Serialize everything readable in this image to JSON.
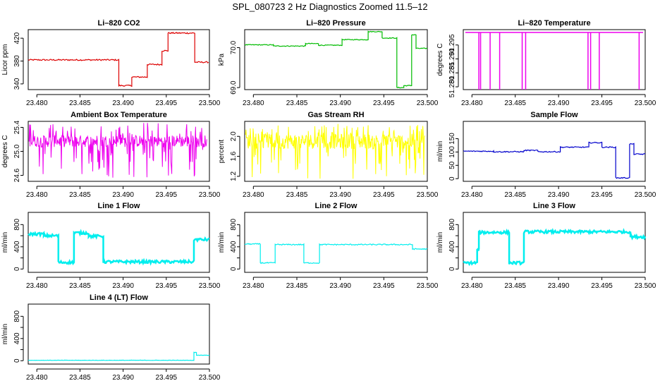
{
  "page_title": "SPL_080723  2 Hz Diagnostics Zoomed 11.5–12",
  "colors": {
    "red": "#dd0000",
    "green": "#00bb00",
    "magenta": "#ee00ee",
    "yellow": "#ffff00",
    "blue": "#0000cc",
    "cyan": "#00eeee"
  },
  "chart_data": [
    {
      "id": "co2",
      "type": "line",
      "title": "Li–820 CO2",
      "ylabel": "Licor ppm",
      "xlabel": "",
      "color": "red",
      "xlim": [
        23.479,
        23.5
      ],
      "ylim": [
        330,
        435
      ],
      "xticks": [
        23.48,
        23.485,
        23.49,
        23.495,
        23.5
      ],
      "xtick_labels": [
        "23.480",
        "23.485",
        "23.490",
        "23.495",
        "23.500"
      ],
      "yticks": [
        340,
        380,
        420
      ],
      "ytick_labels": [
        "340",
        "380",
        "420"
      ],
      "noise": 1.2,
      "segments": [
        {
          "x": [
            23.479,
            23.4895
          ],
          "y": 382
        },
        {
          "x": [
            23.4895,
            23.491
          ],
          "y": 337
        },
        {
          "x": [
            23.491,
            23.4928
          ],
          "y": 352
        },
        {
          "x": [
            23.4928,
            23.4945
          ],
          "y": 374
        },
        {
          "x": [
            23.4945,
            23.4952
          ],
          "y": 398
        },
        {
          "x": [
            23.4952,
            23.4983
          ],
          "y": 429
        },
        {
          "x": [
            23.4983,
            23.4999
          ],
          "y": 378
        }
      ]
    },
    {
      "id": "pressure",
      "type": "line",
      "title": "Li–820 Pressure",
      "ylabel": "kPa",
      "xlabel": "",
      "color": "green",
      "xlim": [
        23.479,
        23.5
      ],
      "ylim": [
        68.95,
        70.45
      ],
      "xticks": [
        23.48,
        23.485,
        23.49,
        23.495,
        23.5
      ],
      "xtick_labels": [
        "23.480",
        "23.485",
        "23.490",
        "23.495",
        "23.500"
      ],
      "yticks": [
        69.0,
        70.0
      ],
      "ytick_labels": [
        "69.0",
        "70.0"
      ],
      "noise": 0.01,
      "segments": [
        {
          "x": [
            23.479,
            23.4823
          ],
          "y": 70.07
        },
        {
          "x": [
            23.4823,
            23.486
          ],
          "y": 70.04
        },
        {
          "x": [
            23.486,
            23.4875
          ],
          "y": 70.1
        },
        {
          "x": [
            23.4875,
            23.4902
          ],
          "y": 70.06
        },
        {
          "x": [
            23.4902,
            23.4932
          ],
          "y": 70.2
        },
        {
          "x": [
            23.4932,
            23.4948
          ],
          "y": 70.4
        },
        {
          "x": [
            23.4948,
            23.4965
          ],
          "y": 70.24
        },
        {
          "x": [
            23.4965,
            23.4973
          ],
          "y": 69.0
        },
        {
          "x": [
            23.4973,
            23.4982
          ],
          "y": 69.05
        },
        {
          "x": [
            23.4982,
            23.4987
          ],
          "y": 70.32
        },
        {
          "x": [
            23.4987,
            23.5
          ],
          "y": 69.98
        }
      ]
    },
    {
      "id": "temperature",
      "type": "line",
      "title": "Li–820 Temperature",
      "ylabel": "degrees C",
      "xlabel": "",
      "color": "magenta",
      "xlim": [
        23.479,
        23.5
      ],
      "ylim": [
        51.279,
        51.3005
      ],
      "xticks": [
        23.48,
        23.485,
        23.49,
        23.495,
        23.5
      ],
      "xtick_labels": [
        "23.480",
        "23.485",
        "23.490",
        "23.495",
        "23.500"
      ],
      "yticks": [
        51.28,
        51.285,
        51.29,
        51.295
      ],
      "ytick_labels": [
        "51.280",
        "51.285",
        "51.290",
        "51.295"
      ],
      "baseline": 51.2995,
      "spikes": [
        23.4808,
        23.481,
        23.4821,
        23.4832,
        23.4858,
        23.4862,
        23.4934,
        23.4937,
        23.4947,
        23.4993
      ],
      "spike_low": 51.279
    },
    {
      "id": "ambient",
      "type": "line",
      "title": "Ambient Box Temperature",
      "ylabel": "degrees C",
      "xlabel": "",
      "color": "magenta",
      "xlim": [
        23.479,
        23.5
      ],
      "ylim": [
        24.5,
        25.5
      ],
      "xticks": [
        23.48,
        23.485,
        23.49,
        23.495,
        23.5
      ],
      "xtick_labels": [
        "23.480",
        "23.485",
        "23.490",
        "23.495",
        "23.500"
      ],
      "yticks": [
        24.6,
        25.0,
        25.4
      ],
      "ytick_labels": [
        "24.6",
        "25.0",
        "25.4"
      ],
      "band": [
        25.07,
        25.27
      ],
      "noise_low": 24.55,
      "noise_high": 25.48
    },
    {
      "id": "rh",
      "type": "line",
      "title": "Gas Stream RH",
      "ylabel": "percent",
      "xlabel": "",
      "color": "yellow",
      "xlim": [
        23.479,
        23.5
      ],
      "ylim": [
        1.1,
        2.3
      ],
      "xticks": [
        23.48,
        23.485,
        23.49,
        23.495,
        23.5
      ],
      "xtick_labels": [
        "23.480",
        "23.485",
        "23.490",
        "23.495",
        "23.500"
      ],
      "yticks": [
        1.2,
        1.6,
        2.0
      ],
      "ytick_labels": [
        "1.2",
        "1.6",
        "2.0"
      ],
      "band": [
        1.75,
        2.05
      ],
      "noise_low": 1.15,
      "noise_high": 2.25
    },
    {
      "id": "sampleflow",
      "type": "line",
      "title": "Sample Flow",
      "ylabel": "ml/min",
      "xlabel": "",
      "color": "blue",
      "xlim": [
        23.479,
        23.5
      ],
      "ylim": [
        -10,
        215
      ],
      "xticks": [
        23.48,
        23.485,
        23.49,
        23.495,
        23.5
      ],
      "xtick_labels": [
        "23.480",
        "23.485",
        "23.490",
        "23.495",
        "23.500"
      ],
      "yticks": [
        0,
        50,
        100,
        150
      ],
      "ytick_labels": [
        "0",
        "50",
        "100",
        "150"
      ],
      "noise": 2,
      "segments": [
        {
          "x": [
            23.479,
            23.4825
          ],
          "y": 103
        },
        {
          "x": [
            23.4825,
            23.486
          ],
          "y": 101
        },
        {
          "x": [
            23.486,
            23.4876
          ],
          "y": 106
        },
        {
          "x": [
            23.4876,
            23.4902
          ],
          "y": 101
        },
        {
          "x": [
            23.4902,
            23.4935
          ],
          "y": 118
        },
        {
          "x": [
            23.4935,
            23.495
          ],
          "y": 135
        },
        {
          "x": [
            23.495,
            23.4966
          ],
          "y": 118
        },
        {
          "x": [
            23.4966,
            23.4982
          ],
          "y": 3
        },
        {
          "x": [
            23.4982,
            23.4987
          ],
          "y": 130
        },
        {
          "x": [
            23.4987,
            23.5
          ],
          "y": 92
        }
      ]
    },
    {
      "id": "line1",
      "type": "line",
      "title": "Line 1 Flow",
      "ylabel": "ml/min",
      "xlabel": "",
      "color": "cyan",
      "xlim": [
        23.479,
        23.5
      ],
      "ylim": [
        -60,
        1020
      ],
      "xticks": [
        23.48,
        23.485,
        23.49,
        23.495,
        23.5
      ],
      "xtick_labels": [
        "23.480",
        "23.485",
        "23.490",
        "23.495",
        "23.500"
      ],
      "yticks": [
        0,
        200,
        400,
        600,
        800
      ],
      "ytick_labels": [
        "0",
        "400",
        "800"
      ],
      "noise": 25,
      "segments": [
        {
          "x": [
            23.479,
            23.4808
          ],
          "y": 630
        },
        {
          "x": [
            23.4808,
            23.4825
          ],
          "y": 600
        },
        {
          "x": [
            23.4825,
            23.4843
          ],
          "y": 120
        },
        {
          "x": [
            23.4843,
            23.486
          ],
          "y": 650
        },
        {
          "x": [
            23.486,
            23.4877
          ],
          "y": 590
        },
        {
          "x": [
            23.4877,
            23.4982
          ],
          "y": 130
        },
        {
          "x": [
            23.4982,
            23.5
          ],
          "y": 530
        }
      ]
    },
    {
      "id": "line2",
      "type": "line",
      "title": "Line 2 Flow",
      "ylabel": "ml/min",
      "xlabel": "",
      "color": "cyan",
      "xlim": [
        23.479,
        23.5
      ],
      "ylim": [
        -60,
        1020
      ],
      "xticks": [
        23.48,
        23.485,
        23.49,
        23.495,
        23.5
      ],
      "xtick_labels": [
        "23.480",
        "23.485",
        "23.490",
        "23.495",
        "23.500"
      ],
      "yticks": [
        0,
        200,
        400,
        600,
        800
      ],
      "ytick_labels": [
        "0",
        "400",
        "800"
      ],
      "noise": 10,
      "segments": [
        {
          "x": [
            23.479,
            23.4808
          ],
          "y": 450
        },
        {
          "x": [
            23.4808,
            23.4825
          ],
          "y": 110
        },
        {
          "x": [
            23.4825,
            23.4858
          ],
          "y": 440
        },
        {
          "x": [
            23.4858,
            23.4876
          ],
          "y": 110
        },
        {
          "x": [
            23.4876,
            23.4983
          ],
          "y": 440
        },
        {
          "x": [
            23.4983,
            23.5
          ],
          "y": 360
        }
      ]
    },
    {
      "id": "line3",
      "type": "line",
      "title": "Line 3 Flow",
      "ylabel": "ml/min",
      "xlabel": "",
      "color": "cyan",
      "xlim": [
        23.479,
        23.5
      ],
      "ylim": [
        -60,
        1020
      ],
      "xticks": [
        23.48,
        23.485,
        23.49,
        23.495,
        23.5
      ],
      "xtick_labels": [
        "23.480",
        "23.485",
        "23.490",
        "23.495",
        "23.500"
      ],
      "yticks": [
        0,
        200,
        400,
        600,
        800
      ],
      "ytick_labels": [
        "0",
        "400",
        "800"
      ],
      "noise": 25,
      "segments": [
        {
          "x": [
            23.479,
            23.4806
          ],
          "y": 110
        },
        {
          "x": [
            23.4806,
            23.4808
          ],
          "y": 350
        },
        {
          "x": [
            23.4808,
            23.4843
          ],
          "y": 660
        },
        {
          "x": [
            23.4843,
            23.486
          ],
          "y": 110
        },
        {
          "x": [
            23.486,
            23.4983
          ],
          "y": 670
        },
        {
          "x": [
            23.4983,
            23.5
          ],
          "y": 580
        }
      ]
    },
    {
      "id": "line4",
      "type": "line",
      "title": "Line 4 (LT) Flow",
      "ylabel": "ml/min",
      "xlabel": "",
      "color": "cyan",
      "xlim": [
        23.479,
        23.5
      ],
      "ylim": [
        -60,
        1020
      ],
      "xticks": [
        23.48,
        23.485,
        23.49,
        23.495,
        23.5
      ],
      "xtick_labels": [
        "23.480",
        "23.485",
        "23.490",
        "23.495",
        "23.500"
      ],
      "yticks": [
        0,
        200,
        400,
        600,
        800
      ],
      "ytick_labels": [
        "0",
        "400",
        "800"
      ],
      "noise": 3,
      "segments": [
        {
          "x": [
            23.479,
            23.4982
          ],
          "y": 8
        },
        {
          "x": [
            23.4982,
            23.4985
          ],
          "y": 150
        },
        {
          "x": [
            23.4985,
            23.5
          ],
          "y": 100
        }
      ]
    }
  ]
}
